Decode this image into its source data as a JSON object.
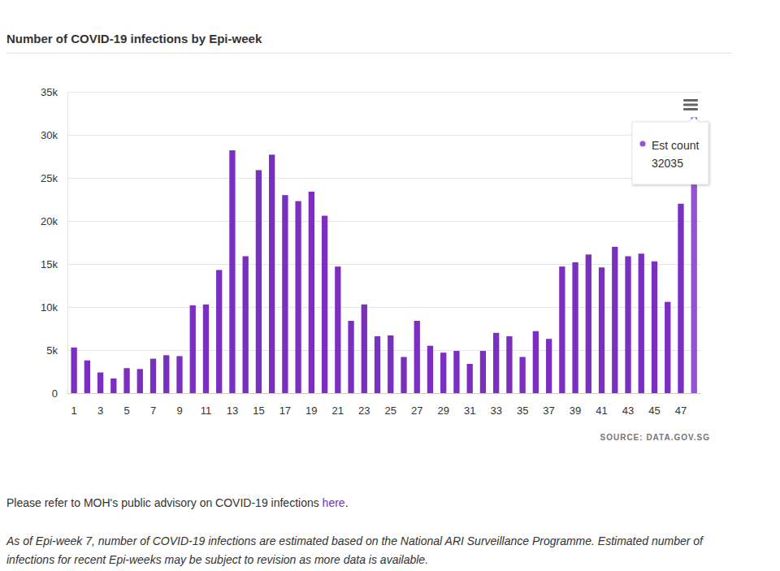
{
  "chart_data": {
    "type": "bar",
    "title": "Number of COVID-19 infections by Epi-week",
    "source": "SOURCE: DATA.GOV.SG",
    "tooltip_label": "Est count",
    "categories": [
      "1",
      null,
      "3",
      null,
      "5",
      null,
      "7",
      null,
      "9",
      null,
      "11",
      null,
      "13",
      null,
      "15",
      null,
      "17",
      null,
      "19",
      null,
      "21",
      null,
      "23",
      null,
      "25",
      null,
      "27",
      null,
      "29",
      null,
      "31",
      null,
      "33",
      null,
      "35",
      null,
      "37",
      null,
      "39",
      null,
      "41",
      null,
      "43",
      null,
      "45",
      null,
      "47",
      null
    ],
    "values": [
      5300,
      3800,
      2400,
      1700,
      2900,
      2800,
      4000,
      4400,
      4300,
      10200,
      10300,
      14300,
      28200,
      15900,
      25900,
      27700,
      23000,
      22300,
      23400,
      20600,
      14700,
      8400,
      10300,
      6600,
      6700,
      4200,
      8400,
      5500,
      4700,
      4900,
      3400,
      4900,
      7000,
      6600,
      4200,
      7200,
      6300,
      14700,
      15200,
      16100,
      14600,
      17000,
      15900,
      16200,
      15300,
      10600,
      22000,
      32035
    ],
    "colors": [
      "#7b2fc1",
      "#7b2fc1",
      "#7b2fc1",
      "#7b2fc1",
      "#7b2fc1",
      "#7b2fc1",
      "#7b2fc1",
      "#7b2fc1",
      "#7b2fc1",
      "#7b2fc1",
      "#7b2fc1",
      "#7b2fc1",
      "#7b2fc1",
      "#7b2fc1",
      "#7b2fc1",
      "#7b2fc1",
      "#7b2fc1",
      "#7b2fc1",
      "#7b2fc1",
      "#7b2fc1",
      "#7b2fc1",
      "#7b2fc1",
      "#7b2fc1",
      "#7b2fc1",
      "#7b2fc1",
      "#7b2fc1",
      "#7b2fc1",
      "#7b2fc1",
      "#7b2fc1",
      "#7b2fc1",
      "#7b2fc1",
      "#7b2fc1",
      "#7b2fc1",
      "#7b2fc1",
      "#7b2fc1",
      "#7b2fc1",
      "#7b2fc1",
      "#7b2fc1",
      "#7b2fc1",
      "#7b2fc1",
      "#7b2fc1",
      "#7b2fc1",
      "#7b2fc1",
      "#7b2fc1",
      "#7b2fc1",
      "#7b2fc1",
      "#7b2fc1",
      "#9650da"
    ],
    "ylim": [
      0,
      35000
    ],
    "yticks": [
      0,
      {
        "value": 5000,
        "label": "5k"
      },
      {
        "value": 10000,
        "label": "10k"
      },
      {
        "value": 15000,
        "label": "15k"
      },
      {
        "value": 20000,
        "label": "20k"
      },
      {
        "value": 25000,
        "label": "25k"
      },
      {
        "value": 30000,
        "label": "30k"
      },
      {
        "value": 35000,
        "label": "35k"
      }
    ],
    "grid": true
  },
  "footer": {
    "advisory": [
      "Please refer to MOH's public advisory on COVID-19 infections ",
      "here",
      "."
    ],
    "note": "As of Epi-week 7, number of COVID-19 infections are estimated based on the National ARI Surveillance Programme. Estimated number of infections for recent Epi-weeks may be subject to revision as more data is available."
  }
}
